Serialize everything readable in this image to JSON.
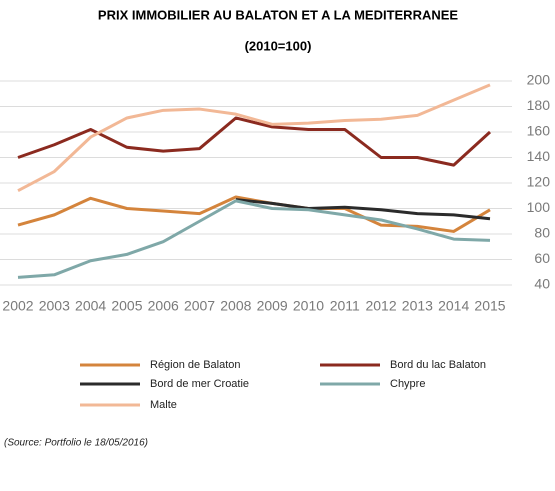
{
  "chart_data": {
    "type": "line",
    "title": "PRIX IMMOBILIER AU BALATON ET A LA MEDITERRANEE",
    "subtitle": "(2010=100)",
    "source": "(Source: Portfolio le 18/05/2016)",
    "categories": [
      "2002",
      "2003",
      "2004",
      "2005",
      "2006",
      "2007",
      "2008",
      "2009",
      "2010",
      "2011",
      "2012",
      "2013",
      "2014",
      "2015"
    ],
    "ylim": [
      40,
      200
    ],
    "yticks": [
      40,
      60,
      80,
      100,
      120,
      140,
      160,
      180,
      200
    ],
    "grid": true,
    "series": [
      {
        "name": "Région de Balaton",
        "color": "#d4843c",
        "values": [
          87,
          95,
          108,
          100,
          98,
          96,
          109,
          104,
          100,
          100,
          87,
          86,
          82,
          99
        ]
      },
      {
        "name": "Bord du lac Balaton",
        "color": "#8b2a1f",
        "values": [
          140,
          150,
          162,
          148,
          145,
          147,
          171,
          164,
          162,
          162,
          140,
          140,
          134,
          160
        ]
      },
      {
        "name": "Bord de mer Croatie",
        "color": "#2b2b2b",
        "values": [
          null,
          null,
          null,
          null,
          null,
          null,
          107,
          104,
          100,
          101,
          99,
          96,
          95,
          92
        ]
      },
      {
        "name": "Chypre",
        "color": "#7fa8a8",
        "values": [
          46,
          48,
          59,
          64,
          74,
          90,
          106,
          100,
          99,
          95,
          91,
          84,
          76,
          75
        ]
      },
      {
        "name": "Malte",
        "color": "#f2b896",
        "values": [
          114,
          129,
          156,
          171,
          177,
          178,
          174,
          166,
          167,
          169,
          170,
          173,
          185,
          197
        ]
      }
    ]
  }
}
